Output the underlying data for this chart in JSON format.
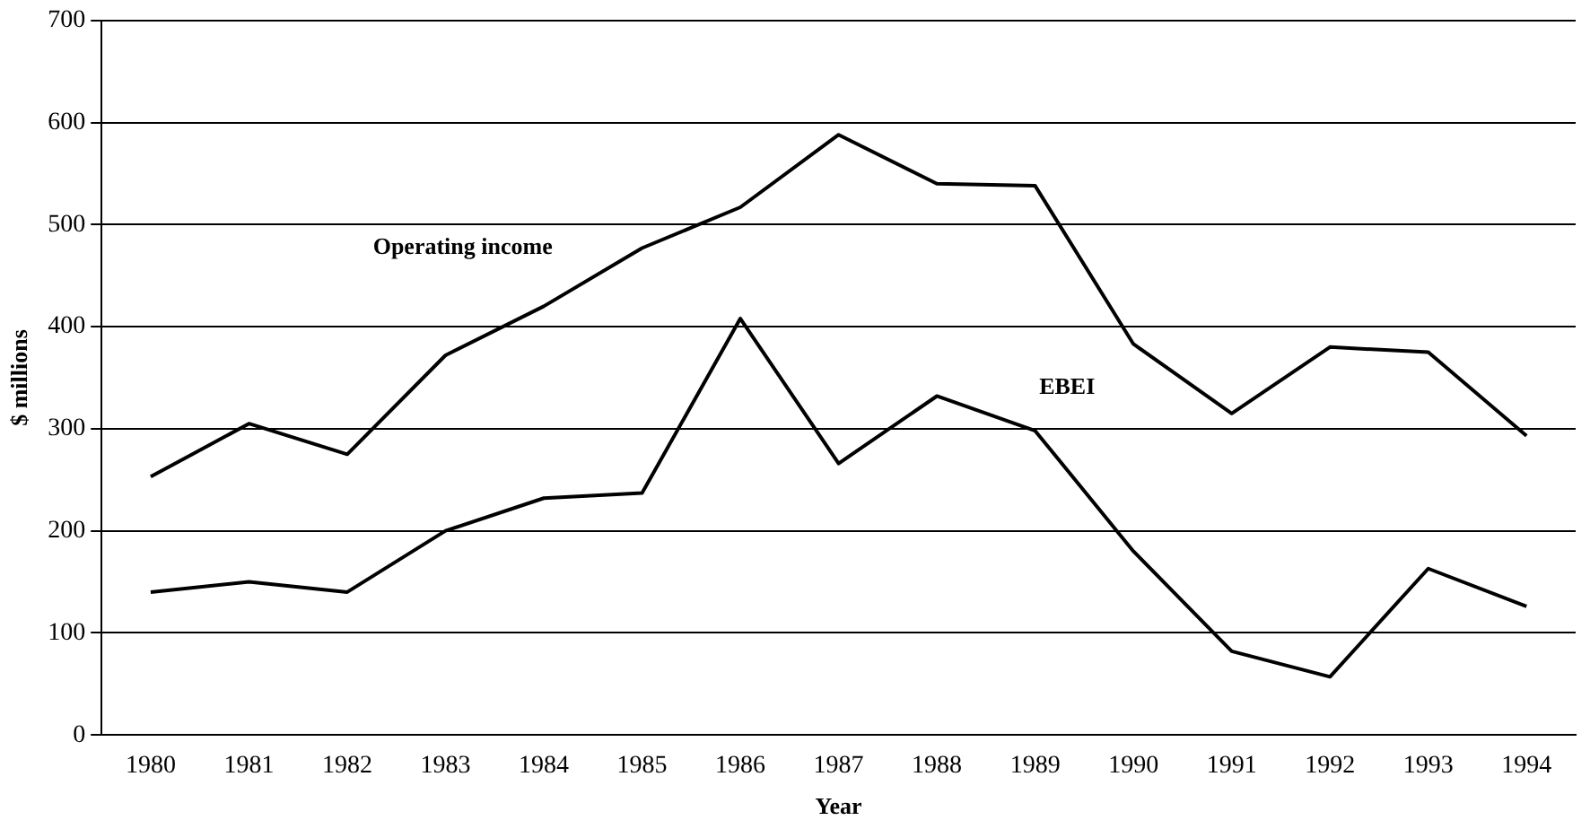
{
  "chart_data": {
    "type": "line",
    "xlabel": "Year",
    "ylabel": "$ millions",
    "categories": [
      "1980",
      "1981",
      "1982",
      "1983",
      "1984",
      "1985",
      "1986",
      "1987",
      "1988",
      "1989",
      "1990",
      "1991",
      "1992",
      "1993",
      "1994"
    ],
    "series": [
      {
        "name": "Operating income",
        "color": "#000000",
        "values": [
          253,
          305,
          275,
          372,
          420,
          477,
          517,
          588,
          540,
          538,
          383,
          315,
          380,
          375,
          293
        ]
      },
      {
        "name": "EBEI",
        "color": "#000000",
        "values": [
          140,
          150,
          140,
          200,
          232,
          237,
          408,
          266,
          332,
          298,
          180,
          82,
          57,
          163,
          126
        ]
      }
    ],
    "ylim": [
      0,
      700
    ],
    "yticks": [
      0,
      100,
      200,
      300,
      400,
      500,
      600,
      700
    ],
    "grid": "y",
    "legend": false,
    "marker": "none",
    "line_style": "solid"
  }
}
